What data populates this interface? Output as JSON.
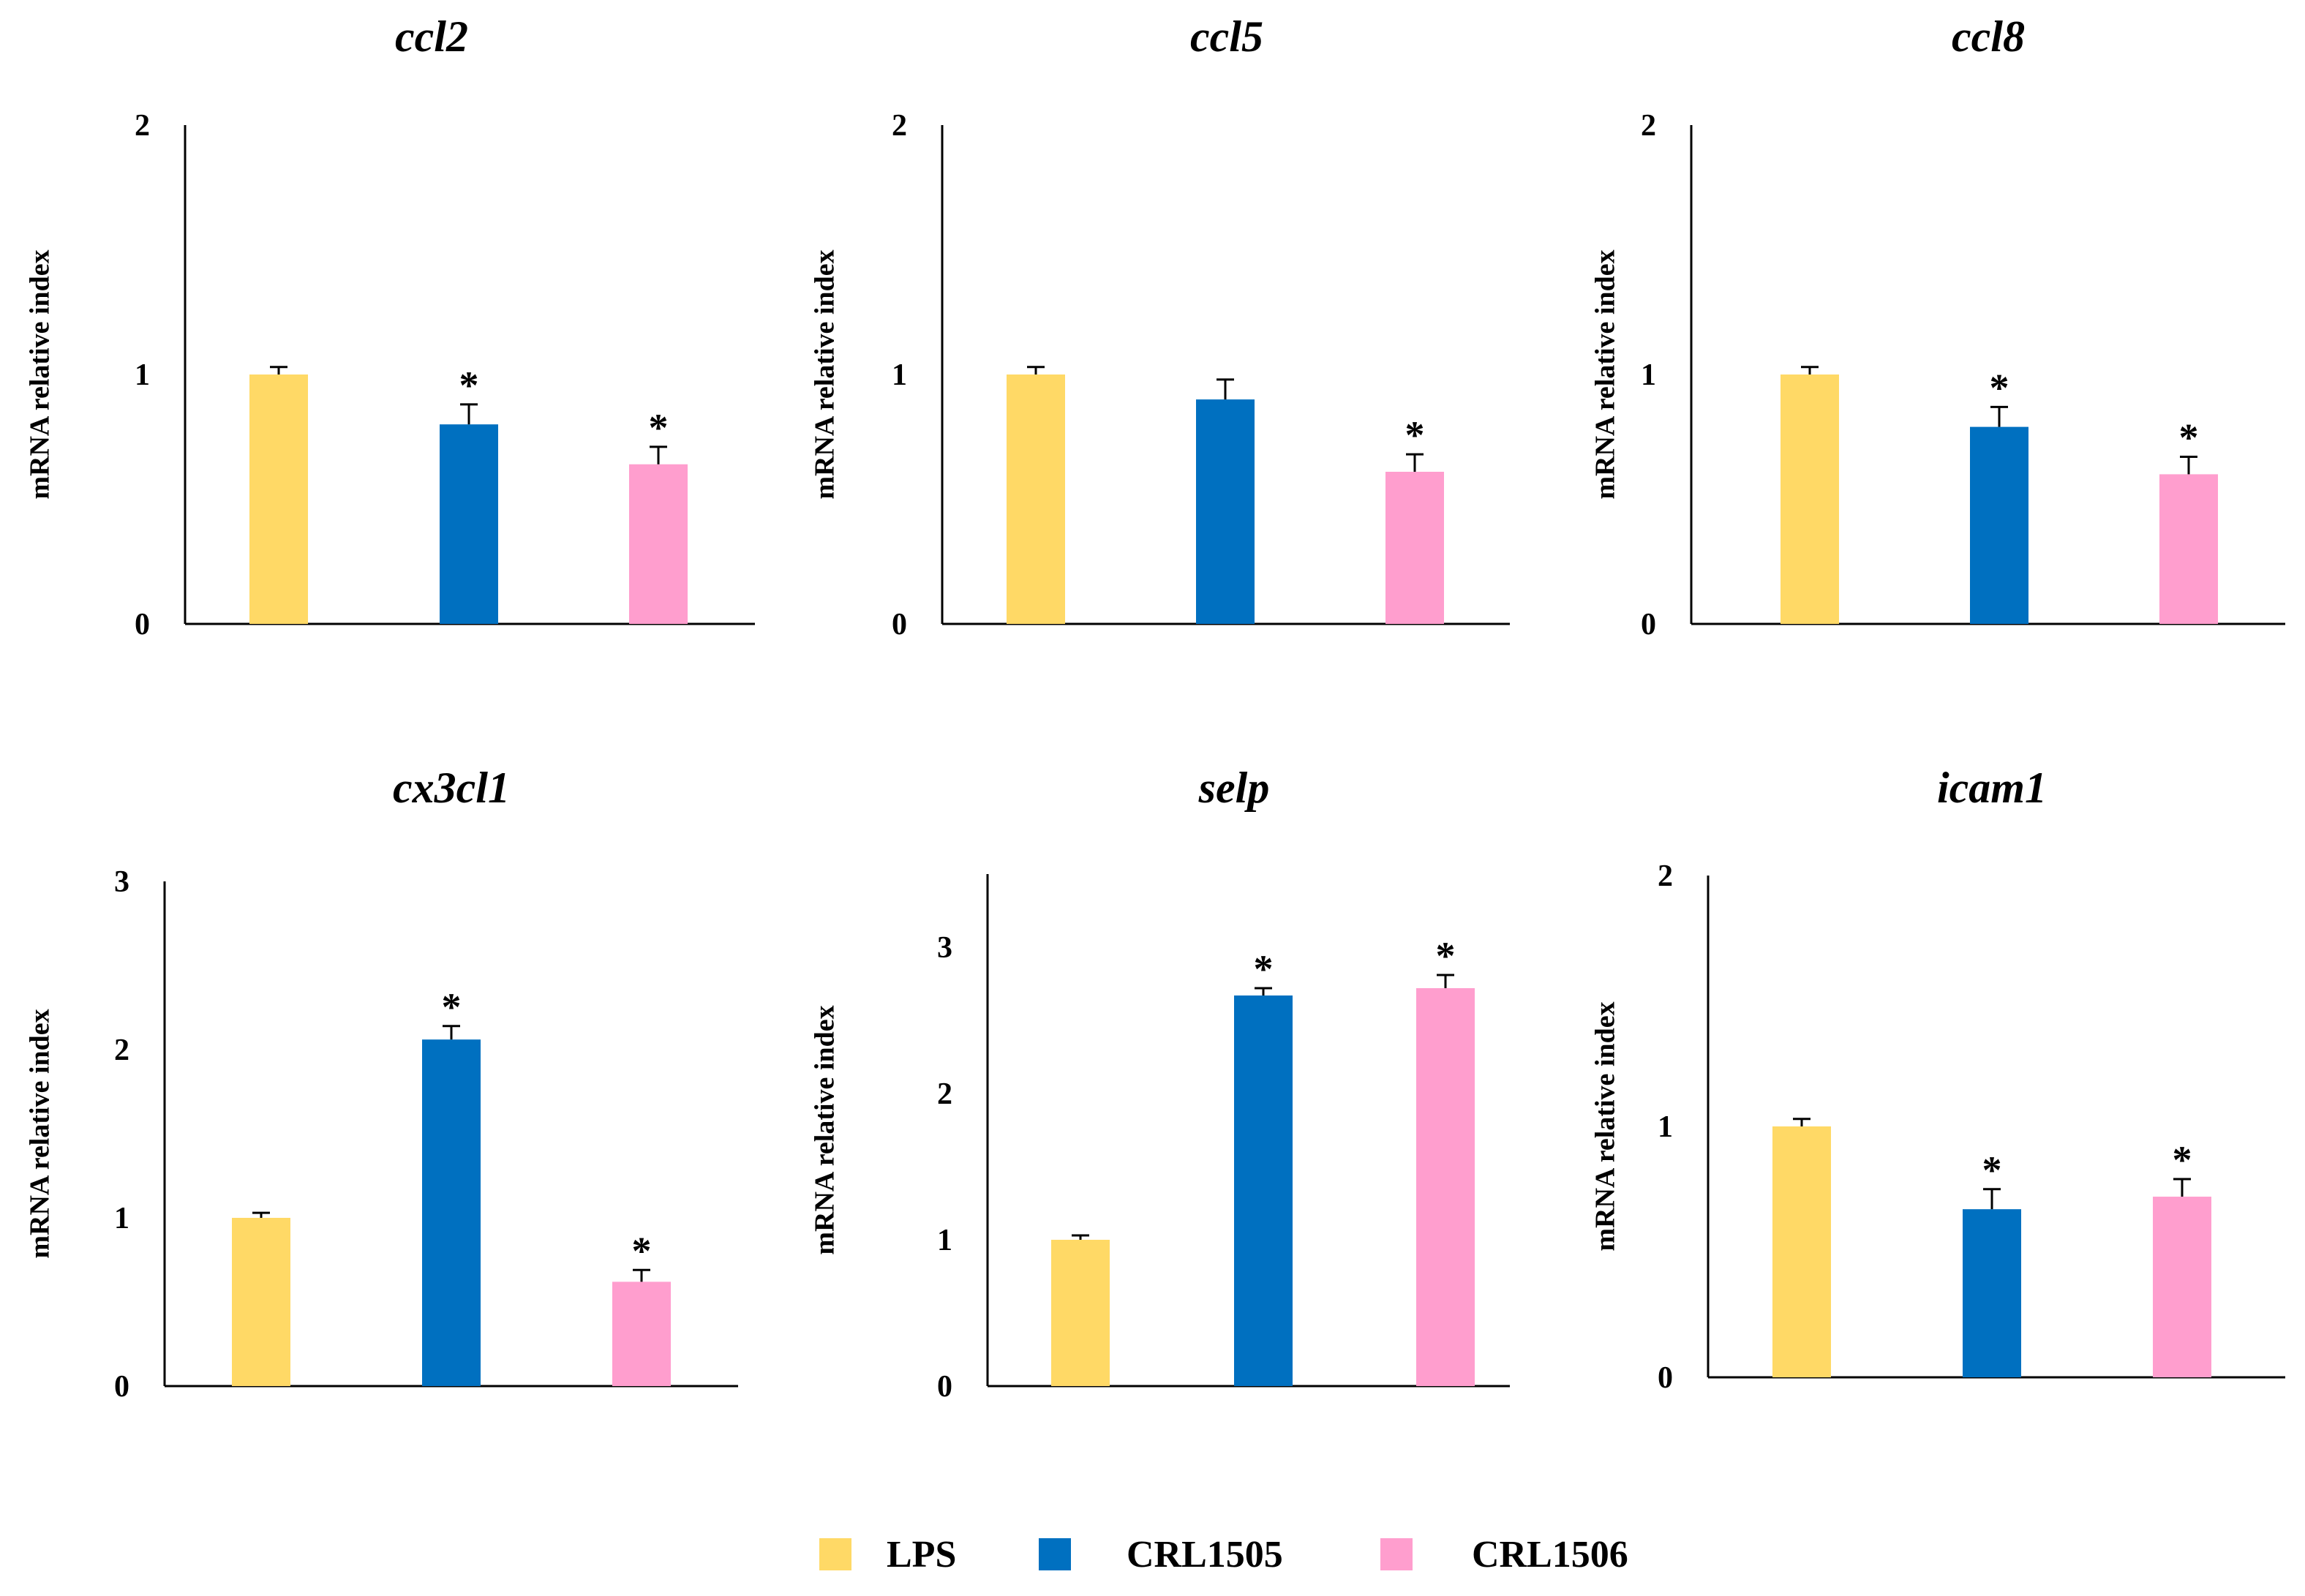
{
  "legend": [
    {
      "label": "LPS",
      "color": "#FFD966"
    },
    {
      "label": "CRL1505",
      "color": "#0070C0"
    },
    {
      "label": "CRL1506",
      "color": "#FF9ECE"
    }
  ],
  "chart_data": [
    {
      "type": "bar",
      "title": "ccl2",
      "ylabel": "mRNA relative index",
      "ylim": [
        0,
        2
      ],
      "yticks": [
        "0",
        "1",
        "2"
      ],
      "categories": [
        "LPS",
        "CRL1505",
        "CRL1506"
      ],
      "values": [
        1.0,
        0.8,
        0.64
      ],
      "errors": [
        0.03,
        0.08,
        0.07
      ],
      "significance": [
        "",
        "*",
        "*"
      ]
    },
    {
      "type": "bar",
      "title": "ccl5",
      "ylabel": "mRNA relative index",
      "ylim": [
        0,
        2
      ],
      "yticks": [
        "0",
        "1",
        "2"
      ],
      "categories": [
        "LPS",
        "CRL1505",
        "CRL1506"
      ],
      "values": [
        1.0,
        0.9,
        0.61
      ],
      "errors": [
        0.03,
        0.08,
        0.07
      ],
      "significance": [
        "",
        "",
        "*"
      ]
    },
    {
      "type": "bar",
      "title": "ccl8",
      "ylabel": "mRNA relative index",
      "ylim": [
        0,
        2
      ],
      "yticks": [
        "0",
        "1",
        "2"
      ],
      "categories": [
        "LPS",
        "CRL1505",
        "CRL1506"
      ],
      "values": [
        1.0,
        0.79,
        0.6
      ],
      "errors": [
        0.03,
        0.08,
        0.07
      ],
      "significance": [
        "",
        "*",
        "*"
      ]
    },
    {
      "type": "bar",
      "title": "cx3cl1",
      "ylabel": "mRNA relative index",
      "ylim": [
        0,
        3
      ],
      "yticks": [
        "0",
        "1",
        "2",
        "3"
      ],
      "categories": [
        "LPS",
        "CRL1505",
        "CRL1506"
      ],
      "values": [
        1.0,
        2.06,
        0.62
      ],
      "errors": [
        0.03,
        0.08,
        0.07
      ],
      "significance": [
        "",
        "*",
        "*"
      ]
    },
    {
      "type": "bar",
      "title": "selp",
      "ylabel": "mRNA relative index",
      "ylim": [
        0,
        3.5
      ],
      "yticks": [
        "0",
        "1",
        "2",
        "3"
      ],
      "categories": [
        "LPS",
        "CRL1505",
        "CRL1506"
      ],
      "values": [
        1.0,
        2.67,
        2.72
      ],
      "errors": [
        0.03,
        0.05,
        0.09
      ],
      "significance": [
        "",
        "*",
        "*"
      ]
    },
    {
      "type": "bar",
      "title": "icam1",
      "ylabel": "mRNA relative index",
      "ylim": [
        0,
        2
      ],
      "yticks": [
        "0",
        "1",
        "2"
      ],
      "categories": [
        "LPS",
        "CRL1505",
        "CRL1506"
      ],
      "values": [
        1.0,
        0.67,
        0.72
      ],
      "errors": [
        0.03,
        0.08,
        0.07
      ],
      "significance": [
        "",
        "*",
        "*"
      ]
    }
  ]
}
